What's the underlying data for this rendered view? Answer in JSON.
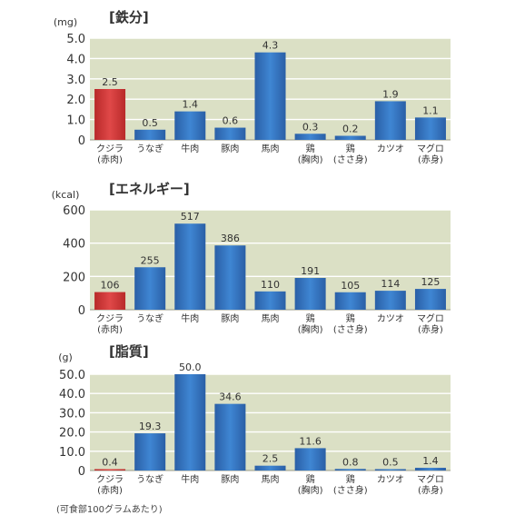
{
  "footnote": "(可食部100グラムあたり)",
  "colors": {
    "highlight": "#d43a3a",
    "bar": "#2f6fb8",
    "plot_bg": "#dbe0c5"
  },
  "chart_data": [
    {
      "type": "bar",
      "title": "[鉄分]",
      "unit": "(mg)",
      "ylim": [
        0,
        5.0
      ],
      "yticks": [
        "0",
        "1.0",
        "2.0",
        "3.0",
        "4.0",
        "5.0"
      ],
      "categories": [
        "クジラ\n(赤肉)",
        "うなぎ",
        "牛肉",
        "豚肉",
        "馬肉",
        "鶏\n(胸肉)",
        "鶏\n(ささ身)",
        "カツオ",
        "マグロ\n(赤身)"
      ],
      "values": [
        2.5,
        0.5,
        1.4,
        0.6,
        4.3,
        0.3,
        0.2,
        1.9,
        1.1
      ],
      "labels": [
        "2.5",
        "0.5",
        "1.4",
        "0.6",
        "4.3",
        "0.3",
        "0.2",
        "1.9",
        "1.1"
      ],
      "highlight_index": 0,
      "grid": true
    },
    {
      "type": "bar",
      "title": "[エネルギー]",
      "unit": "(kcal)",
      "ylim": [
        0,
        600
      ],
      "yticks": [
        "0",
        "200",
        "400",
        "600"
      ],
      "categories": [
        "クジラ\n(赤肉)",
        "うなぎ",
        "牛肉",
        "豚肉",
        "馬肉",
        "鶏\n(胸肉)",
        "鶏\n(ささ身)",
        "カツオ",
        "マグロ\n(赤身)"
      ],
      "values": [
        106,
        255,
        517,
        386,
        110,
        191,
        105,
        114,
        125
      ],
      "labels": [
        "106",
        "255",
        "517",
        "386",
        "110",
        "191",
        "105",
        "114",
        "125"
      ],
      "highlight_index": 0,
      "grid": true
    },
    {
      "type": "bar",
      "title": "[脂質]",
      "unit": "(g)",
      "ylim": [
        0,
        50.0
      ],
      "yticks": [
        "0",
        "10.0",
        "20.0",
        "30.0",
        "40.0",
        "50.0"
      ],
      "categories": [
        "クジラ\n(赤肉)",
        "うなぎ",
        "牛肉",
        "豚肉",
        "馬肉",
        "鶏\n(胸肉)",
        "鶏\n(ささ身)",
        "カツオ",
        "マグロ\n(赤身)"
      ],
      "values": [
        0.4,
        19.3,
        50.0,
        34.6,
        2.5,
        11.6,
        0.8,
        0.5,
        1.4
      ],
      "labels": [
        "0.4",
        "19.3",
        "50.0",
        "34.6",
        "2.5",
        "11.6",
        "0.8",
        "0.5",
        "1.4"
      ],
      "highlight_index": 0,
      "grid": true
    }
  ]
}
